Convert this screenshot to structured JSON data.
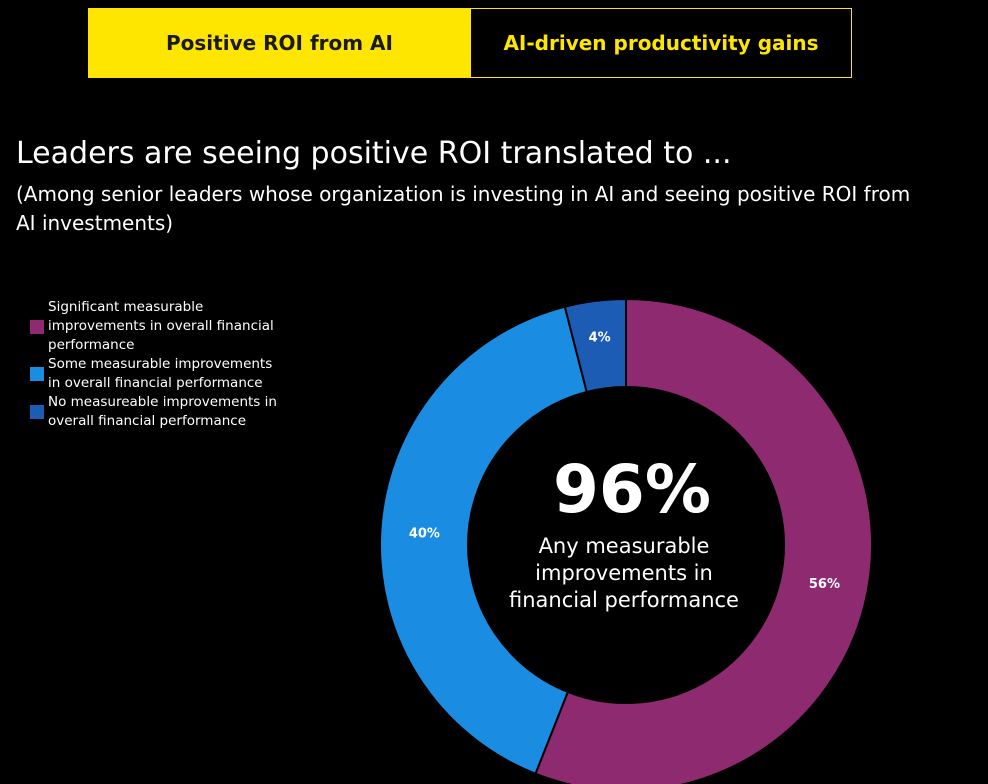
{
  "tabs": [
    {
      "label": "Positive ROI from AI",
      "active": true
    },
    {
      "label": "AI-driven productivity gains",
      "active": false
    }
  ],
  "title": "Leaders are seeing positive ROI translated to ...",
  "subtitle": "(Among senior leaders whose organization is investing in AI and seeing positive ROI from AI investments)",
  "colors": {
    "accent": "#FFE600",
    "purple": "#8E2A6F",
    "blue": "#1A8DE3",
    "darkblue": "#1D5CB4"
  },
  "chart_data": {
    "type": "pie",
    "variant": "donut",
    "categories": [
      "Significant measurable improvements in overall financial performance",
      "Some measurable improvements in overall financial performance",
      "No measureable improvements in overall financial performance"
    ],
    "values": [
      56,
      40,
      4
    ],
    "labels": [
      "56%",
      "40%",
      "4%"
    ],
    "colors": [
      "#8E2A6F",
      "#1A8DE3",
      "#1D5CB4"
    ],
    "center_value": "96%",
    "center_label": "Any measurable improvements in financial performance",
    "legend_position": "left"
  }
}
